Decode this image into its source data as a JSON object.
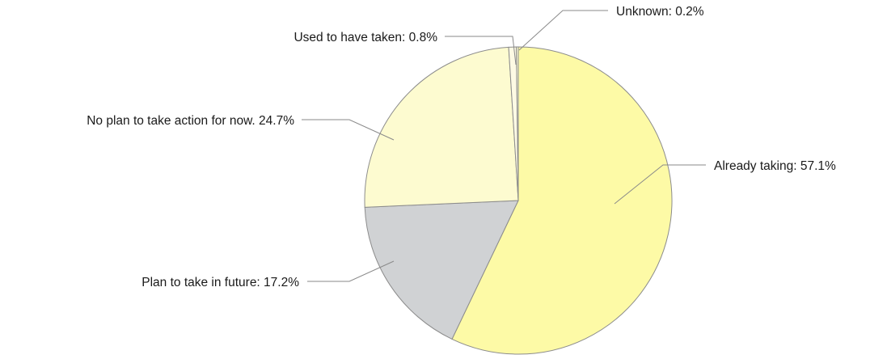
{
  "chart_data": {
    "type": "pie",
    "start_angle": "12 o'clock",
    "direction": "clockwise",
    "legend": "none (direct labels with leader lines)",
    "slices": [
      {
        "label": "Already taking: 57.1%",
        "name": "Already taking",
        "value": 57.1,
        "color": "#fdfaa6"
      },
      {
        "label": "Plan to take in future: 17.2%",
        "name": "Plan to take in future",
        "value": 17.2,
        "color": "#d0d2d4"
      },
      {
        "label": "No plan to take action for now. 24.7%",
        "name": "No plan to take action for now.",
        "value": 24.7,
        "color": "#fdfbd0"
      },
      {
        "label": "Used to have taken: 0.8%",
        "name": "Used to have taken",
        "value": 0.8,
        "color": "#fdfae4"
      },
      {
        "label": "Unknown: 0.2%",
        "name": "Unknown",
        "value": 0.2,
        "color": "#fdfbd6"
      }
    ]
  }
}
